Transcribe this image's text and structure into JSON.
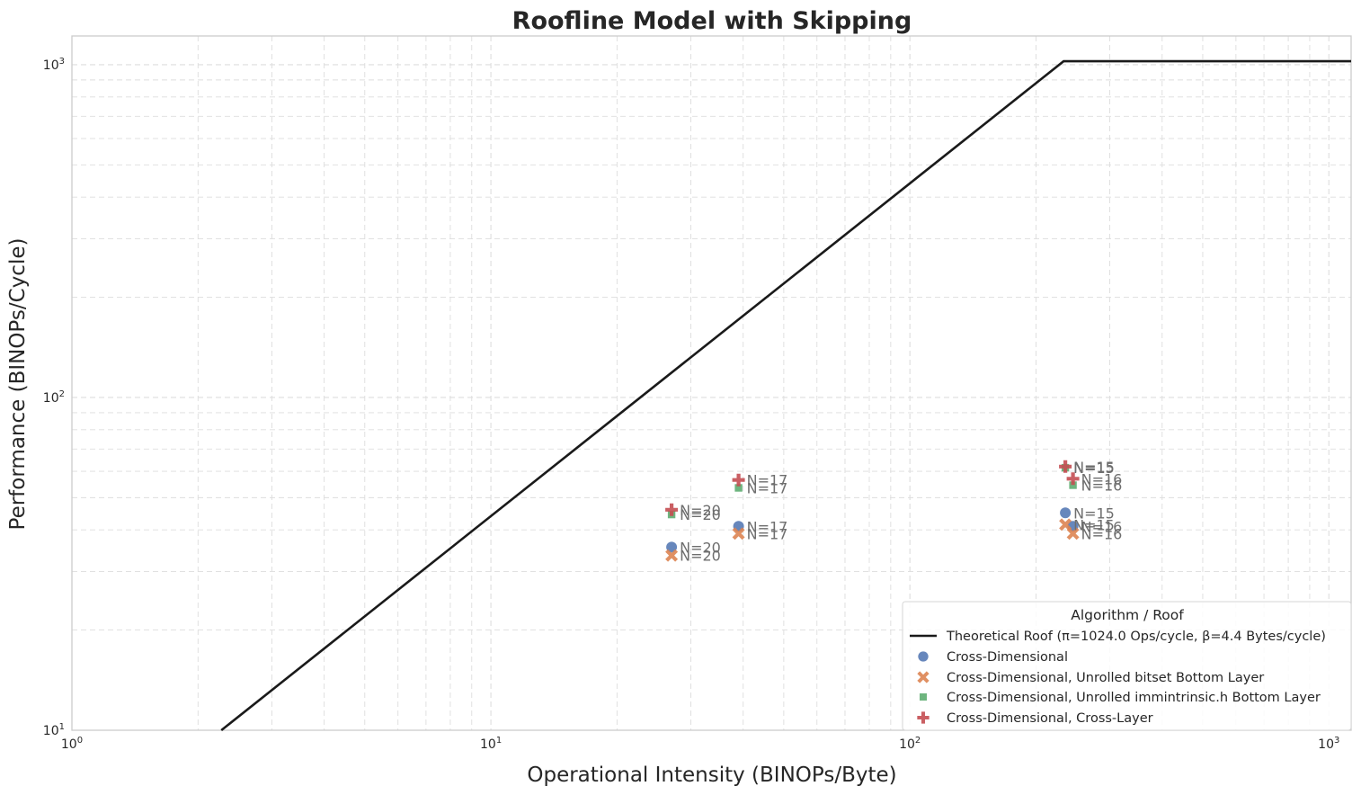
{
  "chart_data": {
    "type": "scatter",
    "title": "Roofline Model with Skipping",
    "xlabel": "Operational Intensity (BINOPs/Byte)",
    "ylabel": "Performance (BINOPs/Cycle)",
    "xscale": "log",
    "yscale": "log",
    "xlim": [
      1,
      1130
    ],
    "ylim": [
      10,
      1220
    ],
    "x_ticks": [
      {
        "value": 1,
        "base": "10",
        "exp": "0"
      },
      {
        "value": 10,
        "base": "10",
        "exp": "1"
      },
      {
        "value": 100,
        "base": "10",
        "exp": "2"
      },
      {
        "value": 1000,
        "base": "10",
        "exp": "3"
      }
    ],
    "y_ticks": [
      {
        "value": 10,
        "base": "10",
        "exp": "1"
      },
      {
        "value": 100,
        "base": "10",
        "exp": "2"
      },
      {
        "value": 1000,
        "base": "10",
        "exp": "3"
      }
    ],
    "grid": true,
    "legend_title": "Algorithm / Roof",
    "legend_position": "lower-right",
    "roof": {
      "name": "Theoretical Roof (π=1024.0 Ops/cycle, β=4.4 Bytes/cycle)",
      "pi": 1024.0,
      "beta": 4.4,
      "color": "#1a1a1a"
    },
    "series": [
      {
        "name": "Cross-Dimensional",
        "marker": "circle",
        "color": "#4c72b0",
        "points": [
          {
            "x": 27,
            "y": 35.5,
            "label": "N=20"
          },
          {
            "x": 39,
            "y": 41,
            "label": "N=17"
          },
          {
            "x": 235,
            "y": 45,
            "label": "N=15"
          },
          {
            "x": 245,
            "y": 41,
            "label": "N=16"
          }
        ]
      },
      {
        "name": "Cross-Dimensional, Unrolled bitset Bottom Layer",
        "marker": "x",
        "color": "#dd8452",
        "points": [
          {
            "x": 27,
            "y": 33.5,
            "label": "N=20"
          },
          {
            "x": 39,
            "y": 39,
            "label": "N=17"
          },
          {
            "x": 235,
            "y": 41.5,
            "label": "N=15"
          },
          {
            "x": 245,
            "y": 39,
            "label": "N=16"
          }
        ]
      },
      {
        "name": "Cross-Dimensional, Unrolled immintrinsic.h Bottom Layer",
        "marker": "square",
        "color": "#55a868",
        "points": [
          {
            "x": 27,
            "y": 44.5,
            "label": "N=20"
          },
          {
            "x": 39,
            "y": 53.5,
            "label": "N=17"
          },
          {
            "x": 235,
            "y": 61.5,
            "label": "N=15"
          },
          {
            "x": 245,
            "y": 54.5,
            "label": "N=16"
          }
        ]
      },
      {
        "name": "Cross-Dimensional, Cross-Layer",
        "marker": "plus",
        "color": "#c44e52",
        "points": [
          {
            "x": 27,
            "y": 46,
            "label": "N=20"
          },
          {
            "x": 39,
            "y": 56.5,
            "label": "N=17"
          },
          {
            "x": 235,
            "y": 62,
            "label": "N=15"
          },
          {
            "x": 245,
            "y": 57,
            "label": "N=16"
          }
        ]
      }
    ]
  }
}
